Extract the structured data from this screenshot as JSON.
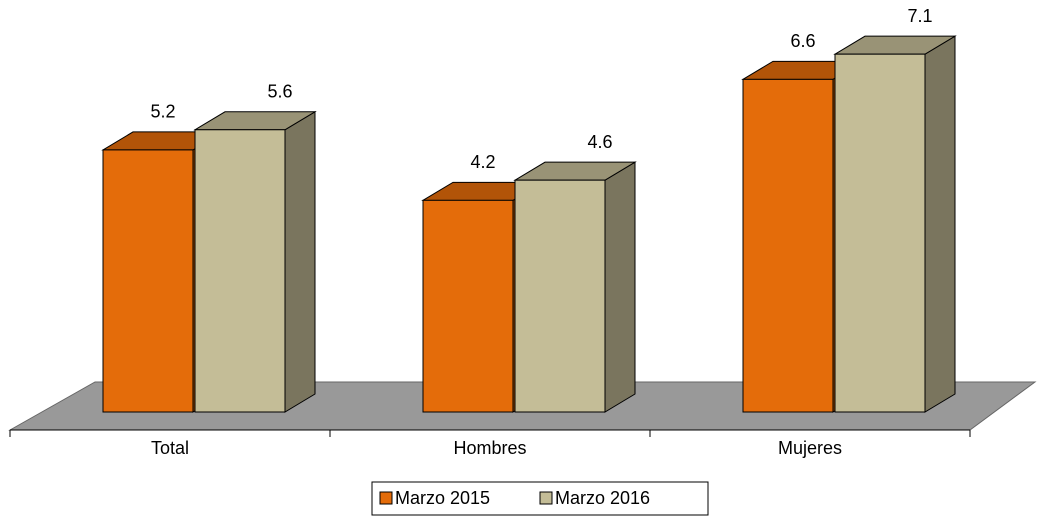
{
  "chart_data": {
    "type": "bar",
    "categories": [
      "Total",
      "Hombres",
      "Mujeres"
    ],
    "series": [
      {
        "name": "Marzo 2015",
        "color": "#e46c0a",
        "values": [
          5.2,
          4.2,
          6.6
        ]
      },
      {
        "name": "Marzo 2016",
        "color": "#c4bd97",
        "values": [
          5.6,
          4.6,
          7.1
        ]
      }
    ],
    "legend": "bottom"
  }
}
